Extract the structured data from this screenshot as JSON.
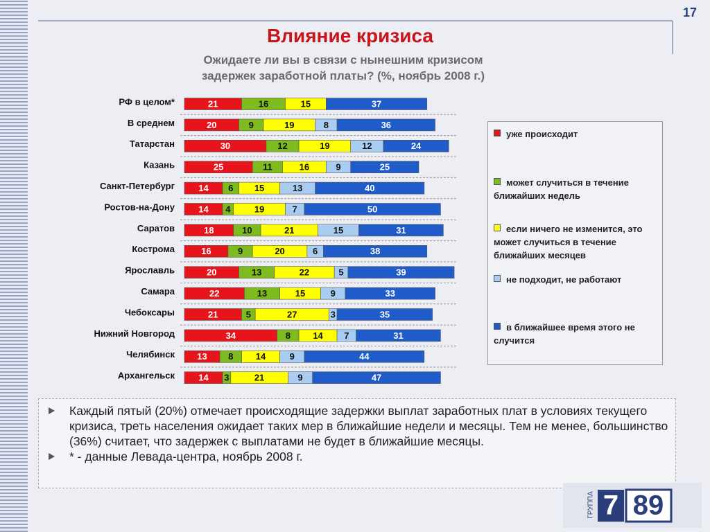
{
  "page_number": "17",
  "chart_data": {
    "type": "stacked-bar-horizontal",
    "title": "Влияние кризиса",
    "subtitle": [
      "Ожидаете ли вы в связи с нынешним кризисом",
      "задержек заработной платы? (%,  ноябрь  2008 г.)"
    ],
    "categories": [
      "РФ в целом*",
      "В среднем",
      "Татарстан",
      "Казань",
      "Санкт-Петербург",
      "Ростов-на-Дону",
      "Саратов",
      "Кострома",
      "Ярославль",
      "Самара",
      "Чебоксары",
      "Нижний Новгород",
      "Челябинск",
      "Архангельск"
    ],
    "series": [
      {
        "name": "уже происходит",
        "color": "#e8141b",
        "values": [
          21,
          20,
          30,
          25,
          14,
          14,
          18,
          16,
          20,
          22,
          21,
          34,
          13,
          14
        ]
      },
      {
        "name": "может случиться в течение ближайших недель",
        "color": "#7dbb1e",
        "values": [
          16,
          9,
          12,
          11,
          6,
          4,
          10,
          9,
          13,
          13,
          5,
          8,
          8,
          3
        ]
      },
      {
        "name": "если ничего не изменится, это может случиться в течение ближайших месяцев",
        "color": "#ffff00",
        "values": [
          15,
          19,
          19,
          16,
          15,
          19,
          21,
          20,
          22,
          15,
          27,
          14,
          14,
          21
        ]
      },
      {
        "name": "не подходит, не работают",
        "color": "#a9cdf2",
        "values": [
          null,
          8,
          12,
          9,
          13,
          7,
          15,
          6,
          5,
          9,
          3,
          7,
          9,
          9
        ]
      },
      {
        "name": "в ближайшее время этого не случится",
        "color": "#1f5bc9",
        "values": [
          37,
          36,
          24,
          25,
          40,
          50,
          31,
          38,
          39,
          33,
          35,
          31,
          44,
          47
        ]
      }
    ]
  },
  "notes": [
    "Каждый пятый (20%) отмечает происходящие задержки выплат заработных плат в условиях текущего кризиса, треть населения ожидает таких мер в ближайшие недели и месяцы. Тем не менее, большинство (36%) считает, что задержек с выплатами не будет в ближайшие месяцы.",
    "* - данные Левада-центра, ноябрь 2008 г."
  ],
  "logo": {
    "group": "ГРУППА",
    "left": "7",
    "right": "89"
  }
}
